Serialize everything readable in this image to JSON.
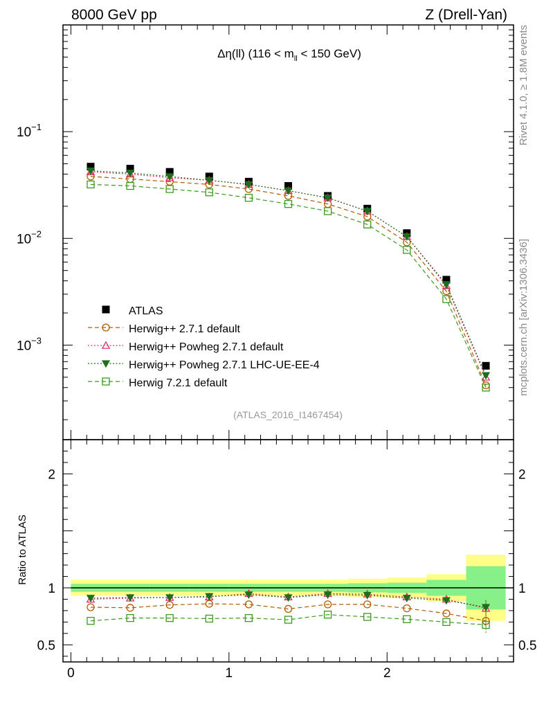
{
  "header": {
    "left": "8000 GeV pp",
    "right": "Z (Drell-Yan)"
  },
  "side": {
    "rivet": "Rivet 4.1.0, ≥ 1.8M events",
    "mcplots": "mcplots.cern.ch [arXiv:1306.3436]"
  },
  "colors": {
    "atlas": "#000000",
    "herwigpp": "#b35a00",
    "powheg": "#e0306a",
    "powheg_ue": "#1e6e1e",
    "herwig7": "#3a9a1a",
    "band_yellow": "#ffff88",
    "band_green": "#88f088"
  },
  "chart_data": [
    {
      "type": "line",
      "panel": "main",
      "title": "Δη(ll) (116 < m_ll < 150 GeV)",
      "title_parts": {
        "main": "Δη(ll) (116 < m",
        "sub": "ll",
        "rest": " < 150 GeV)"
      },
      "yscale": "log",
      "ylim": [
        0.00013,
        1.0
      ],
      "xlim": [
        -0.05,
        2.8
      ],
      "y_ticks": [
        {
          "value": 0.1,
          "base": "10",
          "exp": "−1"
        },
        {
          "value": 0.01,
          "base": "10",
          "exp": "−2"
        },
        {
          "value": 0.001,
          "base": "10",
          "exp": "−3"
        }
      ],
      "x": [
        0.125,
        0.375,
        0.625,
        0.875,
        1.125,
        1.375,
        1.625,
        1.875,
        2.125,
        2.375,
        2.625
      ],
      "series": [
        {
          "name": "ATLAS",
          "marker": "square-filled",
          "style": "points",
          "values": [
            0.047,
            0.045,
            0.042,
            0.038,
            0.034,
            0.031,
            0.025,
            0.019,
            0.0112,
            0.0041,
            0.00064
          ]
        },
        {
          "name": "Herwig++ 2.7.1 default",
          "marker": "circle-open",
          "style": "dashed",
          "values": [
            0.038,
            0.036,
            0.034,
            0.032,
            0.029,
            0.025,
            0.021,
            0.016,
            0.0092,
            0.0032,
            0.00042
          ]
        },
        {
          "name": "Herwig++ Powheg 2.7.1 default",
          "marker": "triangle-up-open",
          "style": "dotted",
          "values": [
            0.042,
            0.04,
            0.037,
            0.035,
            0.032,
            0.028,
            0.024,
            0.018,
            0.0104,
            0.0036,
            0.0005
          ]
        },
        {
          "name": "Herwig++ Powheg 2.7.1 LHC-UE-EE-4",
          "marker": "triangle-down-filled",
          "style": "dotted",
          "values": [
            0.043,
            0.041,
            0.038,
            0.035,
            0.032,
            0.028,
            0.024,
            0.018,
            0.0104,
            0.0037,
            0.00052
          ]
        },
        {
          "name": "Herwig 7.2.1 default",
          "marker": "square-open",
          "style": "dashed",
          "values": [
            0.032,
            0.031,
            0.029,
            0.027,
            0.024,
            0.021,
            0.018,
            0.0135,
            0.0078,
            0.0027,
            0.0004
          ]
        }
      ],
      "analysis_label": "(ATLAS_2016_I1467454)"
    },
    {
      "type": "line",
      "panel": "ratio",
      "ylabel": "Ratio to ATLAS",
      "ylim": [
        0.35,
        2.3
      ],
      "xlim": [
        -0.05,
        2.8
      ],
      "y_ticks": [
        {
          "value": 0.5,
          "label": "0.5"
        },
        {
          "value": 1,
          "label": "1"
        },
        {
          "value": 2,
          "label": "2"
        }
      ],
      "x_ticks": [
        {
          "value": 0,
          "label": "0"
        },
        {
          "value": 1,
          "label": "1"
        },
        {
          "value": 2,
          "label": "2"
        }
      ],
      "x": [
        0.125,
        0.375,
        0.625,
        0.875,
        1.125,
        1.375,
        1.625,
        1.875,
        2.125,
        2.375,
        2.625
      ],
      "bins": [
        [
          0,
          0.25
        ],
        [
          0.25,
          0.5
        ],
        [
          0.5,
          0.75
        ],
        [
          0.75,
          1.0
        ],
        [
          1.0,
          1.25
        ],
        [
          1.25,
          1.5
        ],
        [
          1.5,
          1.75
        ],
        [
          1.75,
          2.0
        ],
        [
          2.0,
          2.25
        ],
        [
          2.25,
          2.5
        ],
        [
          2.5,
          2.75
        ]
      ],
      "band_yellow": [
        0.07,
        0.07,
        0.07,
        0.07,
        0.07,
        0.07,
        0.07,
        0.08,
        0.09,
        0.12,
        0.29
      ],
      "band_green": [
        0.035,
        0.035,
        0.035,
        0.035,
        0.035,
        0.035,
        0.035,
        0.04,
        0.045,
        0.07,
        0.19
      ],
      "series": [
        {
          "name": "Herwig++ 2.7.1 default",
          "marker": "circle-open",
          "style": "dashed",
          "values": [
            0.83,
            0.825,
            0.85,
            0.86,
            0.855,
            0.815,
            0.855,
            0.855,
            0.82,
            0.775,
            0.71
          ]
        },
        {
          "name": "Herwig++ Powheg 2.7.1 default",
          "marker": "triangle-up-open",
          "style": "dotted",
          "values": [
            0.9,
            0.91,
            0.915,
            0.92,
            0.95,
            0.92,
            0.95,
            0.945,
            0.92,
            0.9,
            0.82
          ]
        },
        {
          "name": "Herwig++ Powheg 2.7.1 LHC-UE-EE-4",
          "marker": "triangle-down-filled",
          "style": "dotted",
          "values": [
            0.91,
            0.915,
            0.915,
            0.925,
            0.94,
            0.915,
            0.94,
            0.935,
            0.91,
            0.89,
            0.83
          ]
        },
        {
          "name": "Herwig 7.2.1 default",
          "marker": "square-open",
          "style": "dashed",
          "values": [
            0.71,
            0.735,
            0.735,
            0.73,
            0.735,
            0.72,
            0.765,
            0.745,
            0.725,
            0.7,
            0.675
          ]
        }
      ],
      "errors": [
        0,
        0,
        0,
        0,
        0,
        0,
        0,
        0,
        0,
        0,
        0.07
      ]
    }
  ]
}
